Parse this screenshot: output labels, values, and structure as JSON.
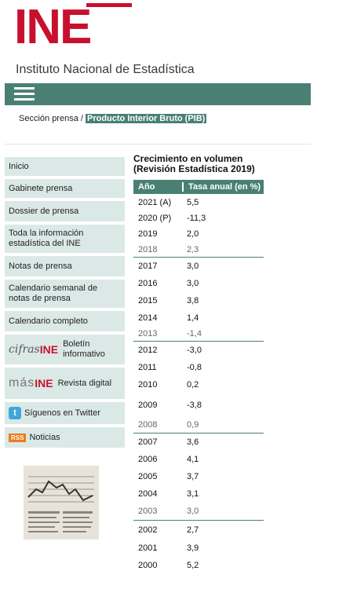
{
  "brand": {
    "logo_text": "INE",
    "subtitle": "Instituto Nacional de Estadística"
  },
  "breadcrumb": {
    "section": "Sección prensa",
    "separator": " / ",
    "current": "Producto Interior Bruto (PIB)"
  },
  "sidebar": {
    "items": [
      {
        "label": "Inicio"
      },
      {
        "label": "Gabinete prensa"
      },
      {
        "label": "Dossier de prensa"
      },
      {
        "label": "Toda la información estadística del INE"
      },
      {
        "label": "Notas de prensa"
      },
      {
        "label": "Calendario semanal de notas de prensa"
      },
      {
        "label": "Calendario completo"
      }
    ],
    "boletin": {
      "logo_cifras": "cifras",
      "logo_ine": "INE",
      "label": "Boletín informativo"
    },
    "revista": {
      "logo_mas": "más",
      "logo_ine": "INE",
      "label": "Revista digital"
    },
    "twitter": {
      "label": "Síguenos en Twitter"
    },
    "rss": {
      "badge": "RSS",
      "label": "Noticias"
    }
  },
  "table": {
    "title_line1": "Crecimiento en volumen",
    "title_line2": "(Revisión Estadística 2019)",
    "col_year": "Año",
    "col_rate": "Tasa anual (en %)",
    "rows": [
      {
        "year": "2021 (A)",
        "value": "5,5"
      },
      {
        "year": "2020 (P)",
        "value": "-11,3"
      },
      {
        "year": "2019",
        "value": "2,0"
      },
      {
        "year": "2018",
        "value": "2,3"
      },
      {
        "year": "2017",
        "value": "3,0"
      },
      {
        "year": "2016",
        "value": "3,0"
      },
      {
        "year": "2015",
        "value": "3,8"
      },
      {
        "year": "2014",
        "value": "1,4"
      },
      {
        "year": "2013",
        "value": "-1,4"
      },
      {
        "year": "2012",
        "value": "-3,0"
      },
      {
        "year": "2011",
        "value": "-0,8"
      },
      {
        "year": "2010",
        "value": "0,2"
      },
      {
        "year": "2009",
        "value": "-3,8"
      },
      {
        "year": "2008",
        "value": "0,9"
      },
      {
        "year": "2007",
        "value": "3,6"
      },
      {
        "year": "2006",
        "value": "4,1"
      },
      {
        "year": "2005",
        "value": "3,7"
      },
      {
        "year": "2004",
        "value": "3,1"
      },
      {
        "year": "2003",
        "value": "3,0"
      },
      {
        "year": "2002",
        "value": "2,7"
      },
      {
        "year": "2001",
        "value": "3,9"
      },
      {
        "year": "2000",
        "value": "5,2"
      }
    ]
  },
  "colors": {
    "brand_red": "#c8102e",
    "accent_teal": "#4a8074",
    "sidebar_bg": "#dbe9e6"
  }
}
